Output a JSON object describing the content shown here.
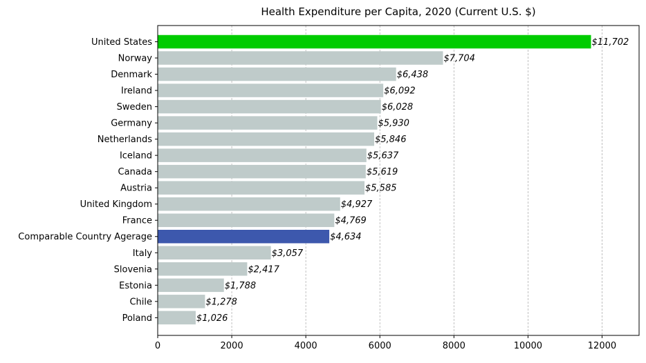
{
  "chart_data": {
    "type": "bar",
    "orientation": "horizontal",
    "title": "Health Expenditure per Capita, 2020 (Current U.S. $)",
    "xlabel": "",
    "ylabel": "",
    "xlim": [
      0,
      13000
    ],
    "xticks": [
      0,
      2000,
      4000,
      6000,
      8000,
      10000,
      12000
    ],
    "grid": "vertical dashed",
    "categories": [
      "United States",
      "Norway",
      "Denmark",
      "Ireland",
      "Sweden",
      "Germany",
      "Netherlands",
      "Iceland",
      "Canada",
      "Austria",
      "United Kingdom",
      "France",
      "Comparable Country Agerage",
      "Italy",
      "Slovenia",
      "Estonia",
      "Chile",
      "Poland"
    ],
    "values": [
      11702,
      7704,
      6438,
      6092,
      6028,
      5930,
      5846,
      5637,
      5619,
      5585,
      4927,
      4769,
      4634,
      3057,
      2417,
      1788,
      1278,
      1026
    ],
    "value_labels": [
      "$11,702",
      "$7,704",
      "$6,438",
      "$6,092",
      "$6,028",
      "$5,930",
      "$5,846",
      "$5,637",
      "$5,619",
      "$5,585",
      "$4,927",
      "$4,769",
      "$4,634",
      "$3,057",
      "$2,417",
      "$1,788",
      "$1,278",
      "$1,026"
    ],
    "colors": {
      "default": "#bfcbca",
      "highlight_us": "#00cc00",
      "highlight_average": "#3d58ad"
    },
    "highlights": {
      "United States": "highlight_us",
      "Comparable Country Agerage": "highlight_average"
    }
  }
}
